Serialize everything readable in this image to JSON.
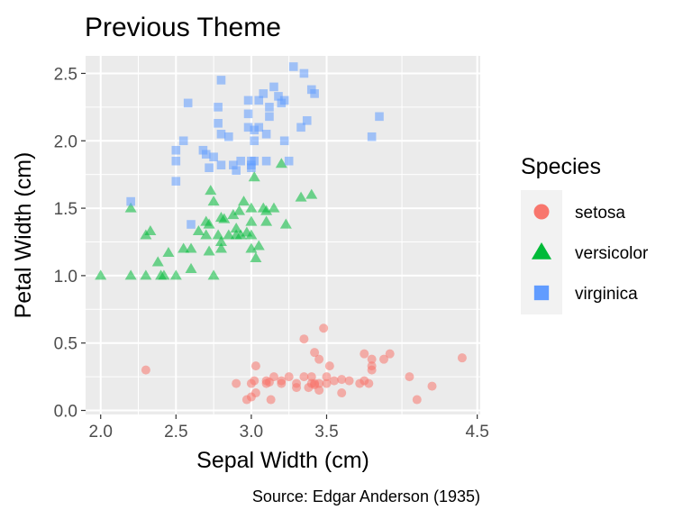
{
  "chart_data": {
    "type": "scatter",
    "title": "Previous Theme",
    "xlabel": "Sepal Width (cm)",
    "ylabel": "Petal Width (cm)",
    "caption": "Source: Edgar Anderson (1935)",
    "xlim": [
      1.9,
      4.52
    ],
    "ylim": [
      -0.03,
      2.63
    ],
    "x_ticks": [
      "2.0",
      "2.5",
      "3.0",
      "3.5",
      "4.5"
    ],
    "x_tick_values": [
      2.0,
      2.5,
      3.0,
      3.5,
      4.5
    ],
    "y_ticks": [
      "0.0",
      "0.5",
      "1.0",
      "1.5",
      "2.0",
      "2.5"
    ],
    "y_tick_values": [
      0.0,
      0.5,
      1.0,
      1.5,
      2.0,
      2.5
    ],
    "grid": true,
    "legend": {
      "title": "Species",
      "position": "right"
    },
    "series": [
      {
        "name": "setosa",
        "color": "#F8766D",
        "shape": "circle",
        "points": [
          [
            2.3,
            0.3
          ],
          [
            2.9,
            0.2
          ],
          [
            2.97,
            0.08
          ],
          [
            3.0,
            0.1
          ],
          [
            3.0,
            0.2
          ],
          [
            3.03,
            0.13
          ],
          [
            3.03,
            0.33
          ],
          [
            3.1,
            0.2
          ],
          [
            3.1,
            0.22
          ],
          [
            3.13,
            0.08
          ],
          [
            3.15,
            0.25
          ],
          [
            3.2,
            0.2
          ],
          [
            3.25,
            0.25
          ],
          [
            3.3,
            0.2
          ],
          [
            3.35,
            0.53
          ],
          [
            3.4,
            0.2
          ],
          [
            3.4,
            0.25
          ],
          [
            3.42,
            0.2
          ],
          [
            3.42,
            0.43
          ],
          [
            3.45,
            0.38
          ],
          [
            3.48,
            0.61
          ],
          [
            3.5,
            0.2
          ],
          [
            3.5,
            0.25
          ],
          [
            3.52,
            0.33
          ],
          [
            3.55,
            0.22
          ],
          [
            3.6,
            0.13
          ],
          [
            3.65,
            0.22
          ],
          [
            3.75,
            0.42
          ],
          [
            3.75,
            0.22
          ],
          [
            3.78,
            0.2
          ],
          [
            3.8,
            0.3
          ],
          [
            3.8,
            0.38
          ],
          [
            3.8,
            0.33
          ],
          [
            3.88,
            0.38
          ],
          [
            3.92,
            0.42
          ],
          [
            4.05,
            0.25
          ],
          [
            4.1,
            0.08
          ],
          [
            4.2,
            0.18
          ],
          [
            4.4,
            0.39
          ],
          [
            3.3,
            0.17
          ],
          [
            3.38,
            0.17
          ],
          [
            3.45,
            0.2
          ],
          [
            3.45,
            0.15
          ],
          [
            3.6,
            0.23
          ],
          [
            3.2,
            0.22
          ],
          [
            3.02,
            0.22
          ],
          [
            3.35,
            0.25
          ],
          [
            3.72,
            0.2
          ],
          [
            3.12,
            0.21
          ],
          [
            3.42,
            0.19
          ]
        ]
      },
      {
        "name": "versicolor",
        "color": "#00BA38",
        "shape": "triangle",
        "points": [
          [
            2.0,
            1.0
          ],
          [
            2.2,
            1.0
          ],
          [
            2.2,
            1.5
          ],
          [
            2.3,
            1.3
          ],
          [
            2.3,
            1.0
          ],
          [
            2.33,
            1.33
          ],
          [
            2.38,
            1.1
          ],
          [
            2.4,
            1.0
          ],
          [
            2.42,
            1.0
          ],
          [
            2.45,
            1.17
          ],
          [
            2.5,
            1.0
          ],
          [
            2.55,
            1.2
          ],
          [
            2.6,
            1.2
          ],
          [
            2.6,
            1.05
          ],
          [
            2.65,
            1.33
          ],
          [
            2.7,
            1.4
          ],
          [
            2.7,
            1.3
          ],
          [
            2.72,
            1.38
          ],
          [
            2.72,
            1.18
          ],
          [
            2.73,
            1.63
          ],
          [
            2.75,
            1.55
          ],
          [
            2.75,
            1.0
          ],
          [
            2.78,
            1.3
          ],
          [
            2.8,
            1.43
          ],
          [
            2.8,
            1.25
          ],
          [
            2.8,
            1.2
          ],
          [
            2.82,
            1.42
          ],
          [
            2.85,
            1.3
          ],
          [
            2.88,
            1.45
          ],
          [
            2.9,
            1.3
          ],
          [
            2.9,
            1.35
          ],
          [
            2.92,
            1.48
          ],
          [
            2.93,
            1.3
          ],
          [
            2.95,
            1.55
          ],
          [
            2.97,
            1.32
          ],
          [
            3.0,
            1.5
          ],
          [
            3.0,
            1.4
          ],
          [
            3.0,
            1.3
          ],
          [
            3.0,
            1.2
          ],
          [
            3.02,
            1.73
          ],
          [
            3.03,
            1.13
          ],
          [
            3.05,
            1.22
          ],
          [
            3.08,
            1.5
          ],
          [
            3.1,
            1.48
          ],
          [
            3.1,
            1.4
          ],
          [
            3.15,
            1.5
          ],
          [
            3.2,
            1.83
          ],
          [
            3.23,
            1.38
          ],
          [
            3.33,
            1.58
          ],
          [
            3.4,
            1.6
          ]
        ]
      },
      {
        "name": "virginica",
        "color": "#619CFF",
        "shape": "square",
        "points": [
          [
            2.2,
            1.55
          ],
          [
            2.5,
            1.7
          ],
          [
            2.5,
            1.85
          ],
          [
            2.5,
            1.93
          ],
          [
            2.55,
            2.0
          ],
          [
            2.58,
            2.28
          ],
          [
            2.6,
            1.38
          ],
          [
            2.68,
            1.93
          ],
          [
            2.7,
            1.9
          ],
          [
            2.72,
            1.8
          ],
          [
            2.75,
            1.88
          ],
          [
            2.78,
            2.25
          ],
          [
            2.78,
            2.13
          ],
          [
            2.8,
            2.45
          ],
          [
            2.8,
            2.05
          ],
          [
            2.8,
            1.82
          ],
          [
            2.85,
            2.03
          ],
          [
            2.88,
            1.82
          ],
          [
            2.9,
            1.78
          ],
          [
            2.93,
            1.85
          ],
          [
            2.98,
            2.3
          ],
          [
            2.98,
            2.2
          ],
          [
            2.98,
            2.1
          ],
          [
            3.0,
            1.85
          ],
          [
            3.0,
            1.82
          ],
          [
            3.0,
            1.8
          ],
          [
            3.02,
            2.08
          ],
          [
            3.02,
            2.0
          ],
          [
            3.02,
            1.85
          ],
          [
            3.05,
            2.3
          ],
          [
            3.05,
            2.1
          ],
          [
            3.08,
            2.35
          ],
          [
            3.1,
            2.05
          ],
          [
            3.1,
            1.85
          ],
          [
            3.12,
            2.25
          ],
          [
            3.12,
            2.18
          ],
          [
            3.15,
            2.4
          ],
          [
            3.18,
            2.33
          ],
          [
            3.2,
            2.28
          ],
          [
            3.22,
            2.3
          ],
          [
            3.22,
            2.0
          ],
          [
            3.25,
            1.85
          ],
          [
            3.28,
            2.55
          ],
          [
            3.33,
            2.1
          ],
          [
            3.35,
            2.5
          ],
          [
            3.37,
            2.15
          ],
          [
            3.4,
            2.38
          ],
          [
            3.42,
            2.35
          ],
          [
            3.8,
            2.03
          ],
          [
            3.85,
            2.18
          ]
        ]
      }
    ]
  }
}
